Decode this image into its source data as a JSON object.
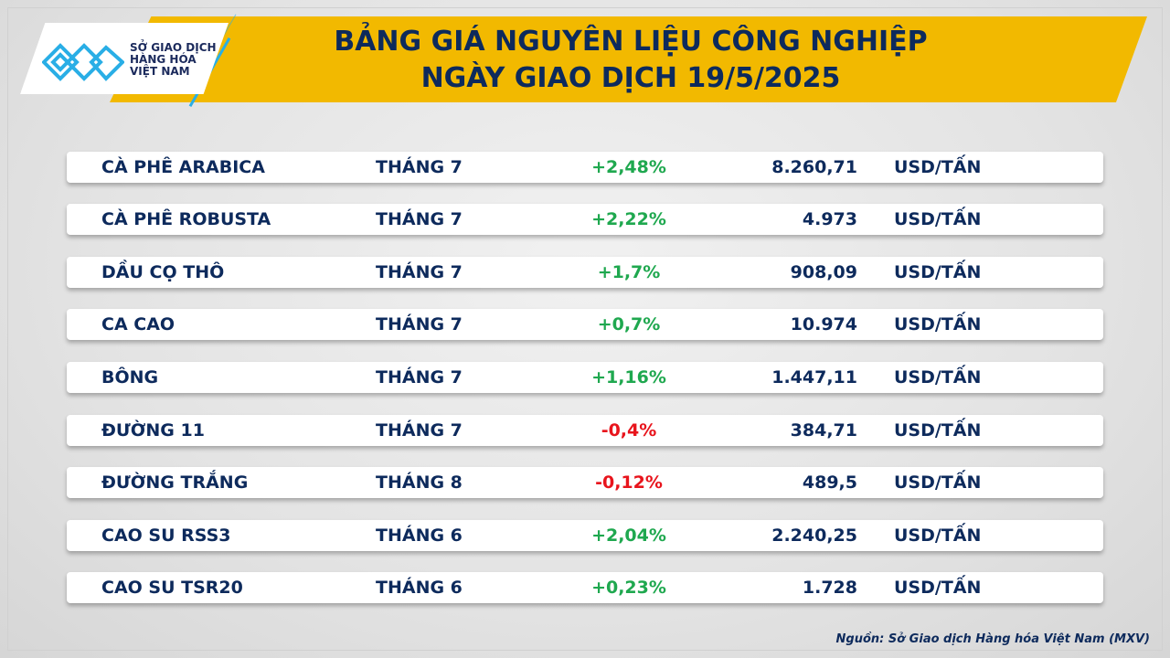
{
  "header": {
    "title_line1": "BẢNG GIÁ NGUYÊN LIỆU CÔNG NGHIỆP",
    "title_line2": "NGÀY GIAO DỊCH 19/5/2025",
    "logo": {
      "line1": "SỞ GIAO DỊCH",
      "line2": "HÀNG HÓA",
      "line3": "VIỆT NAM",
      "icon": "mxv-logo-icon"
    }
  },
  "colors": {
    "navy": "#0d2a5c",
    "banner": "#f2b900",
    "up": "#1fa84f",
    "down": "#e8141c",
    "logo_blue": "#29aee6"
  },
  "rows": [
    {
      "name": "CÀ PHÊ ARABICA",
      "month": "THÁNG 7",
      "change": "+2,48%",
      "dir": "up",
      "price": "8.260,71",
      "unit": "USD/TẤN"
    },
    {
      "name": "CÀ PHÊ ROBUSTA",
      "month": "THÁNG 7",
      "change": "+2,22%",
      "dir": "up",
      "price": "4.973",
      "unit": "USD/TẤN"
    },
    {
      "name": "DẦU CỌ THÔ",
      "month": "THÁNG 7",
      "change": "+1,7%",
      "dir": "up",
      "price": "908,09",
      "unit": "USD/TẤN"
    },
    {
      "name": "CA CAO",
      "month": "THÁNG 7",
      "change": "+0,7%",
      "dir": "up",
      "price": "10.974",
      "unit": "USD/TẤN"
    },
    {
      "name": "BÔNG",
      "month": "THÁNG 7",
      "change": "+1,16%",
      "dir": "up",
      "price": "1.447,11",
      "unit": "USD/TẤN"
    },
    {
      "name": "ĐƯỜNG 11",
      "month": "THÁNG 7",
      "change": "-0,4%",
      "dir": "down",
      "price": "384,71",
      "unit": "USD/TẤN"
    },
    {
      "name": "ĐƯỜNG TRẮNG",
      "month": "THÁNG 8",
      "change": "-0,12%",
      "dir": "down",
      "price": "489,5",
      "unit": "USD/TẤN"
    },
    {
      "name": "CAO SU RSS3",
      "month": "THÁNG 6",
      "change": "+2,04%",
      "dir": "up",
      "price": "2.240,25",
      "unit": "USD/TẤN"
    },
    {
      "name": "CAO SU TSR20",
      "month": "THÁNG 6",
      "change": "+0,23%",
      "dir": "up",
      "price": "1.728",
      "unit": "USD/TẤN"
    }
  ],
  "footer": {
    "source": "Nguồn: Sở Giao dịch Hàng hóa Việt Nam (MXV)"
  }
}
